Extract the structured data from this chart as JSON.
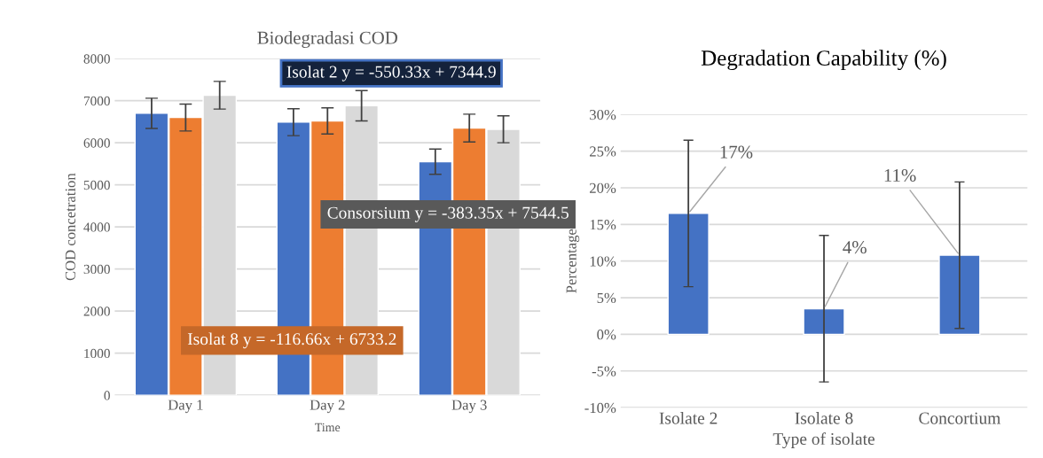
{
  "chart_data": [
    {
      "type": "bar",
      "title": "Biodegradasi COD",
      "xlabel": "Time",
      "ylabel": "COD concetration",
      "categories": [
        "Day 1",
        "Day 2",
        "Day 3"
      ],
      "series": [
        {
          "color": "#4472c4",
          "values": [
            6700,
            6490,
            5550
          ],
          "errors": [
            360,
            320,
            300
          ]
        },
        {
          "color": "#ed7d31",
          "values": [
            6600,
            6520,
            6350
          ],
          "errors": [
            320,
            310,
            330
          ]
        },
        {
          "color": "#d9d9d9",
          "values": [
            7130,
            6880,
            6320
          ],
          "errors": [
            330,
            360,
            320
          ]
        }
      ],
      "annotations": [
        "Isolat 2 y = -550.33x + 7344.9",
        "Isolat 8 y = -116.66x + 6733.2",
        "Consorsium y = -383.35x + 7544.5"
      ],
      "ylim": [
        0,
        8000
      ],
      "yticks": [
        0,
        1000,
        2000,
        3000,
        4000,
        5000,
        6000,
        7000,
        8000
      ],
      "grid": "y",
      "legend": false
    },
    {
      "type": "bar",
      "title": "Degradation Capability (%)",
      "xlabel": "Type of isolate",
      "ylabel": "Percentage",
      "categories": [
        "Isolate 2",
        "Isolate 8",
        "Concortium"
      ],
      "values": [
        16.5,
        3.5,
        10.8
      ],
      "errors": [
        10,
        10,
        10
      ],
      "color": "#4472c4",
      "value_labels": [
        "17%",
        "4%",
        "11%"
      ],
      "ylim": [
        -10,
        30
      ],
      "yticks": [
        {
          "value": -10,
          "label": "-10%"
        },
        {
          "value": -5,
          "label": "-5%"
        },
        {
          "value": 0,
          "label": "0%"
        },
        {
          "value": 5,
          "label": "5%"
        },
        {
          "value": 10,
          "label": "10%"
        },
        {
          "value": 15,
          "label": "15%"
        },
        {
          "value": 20,
          "label": "20%"
        },
        {
          "value": 25,
          "label": "25%"
        },
        {
          "value": 30,
          "label": "30%"
        }
      ],
      "grid": "y",
      "legend": false
    }
  ]
}
